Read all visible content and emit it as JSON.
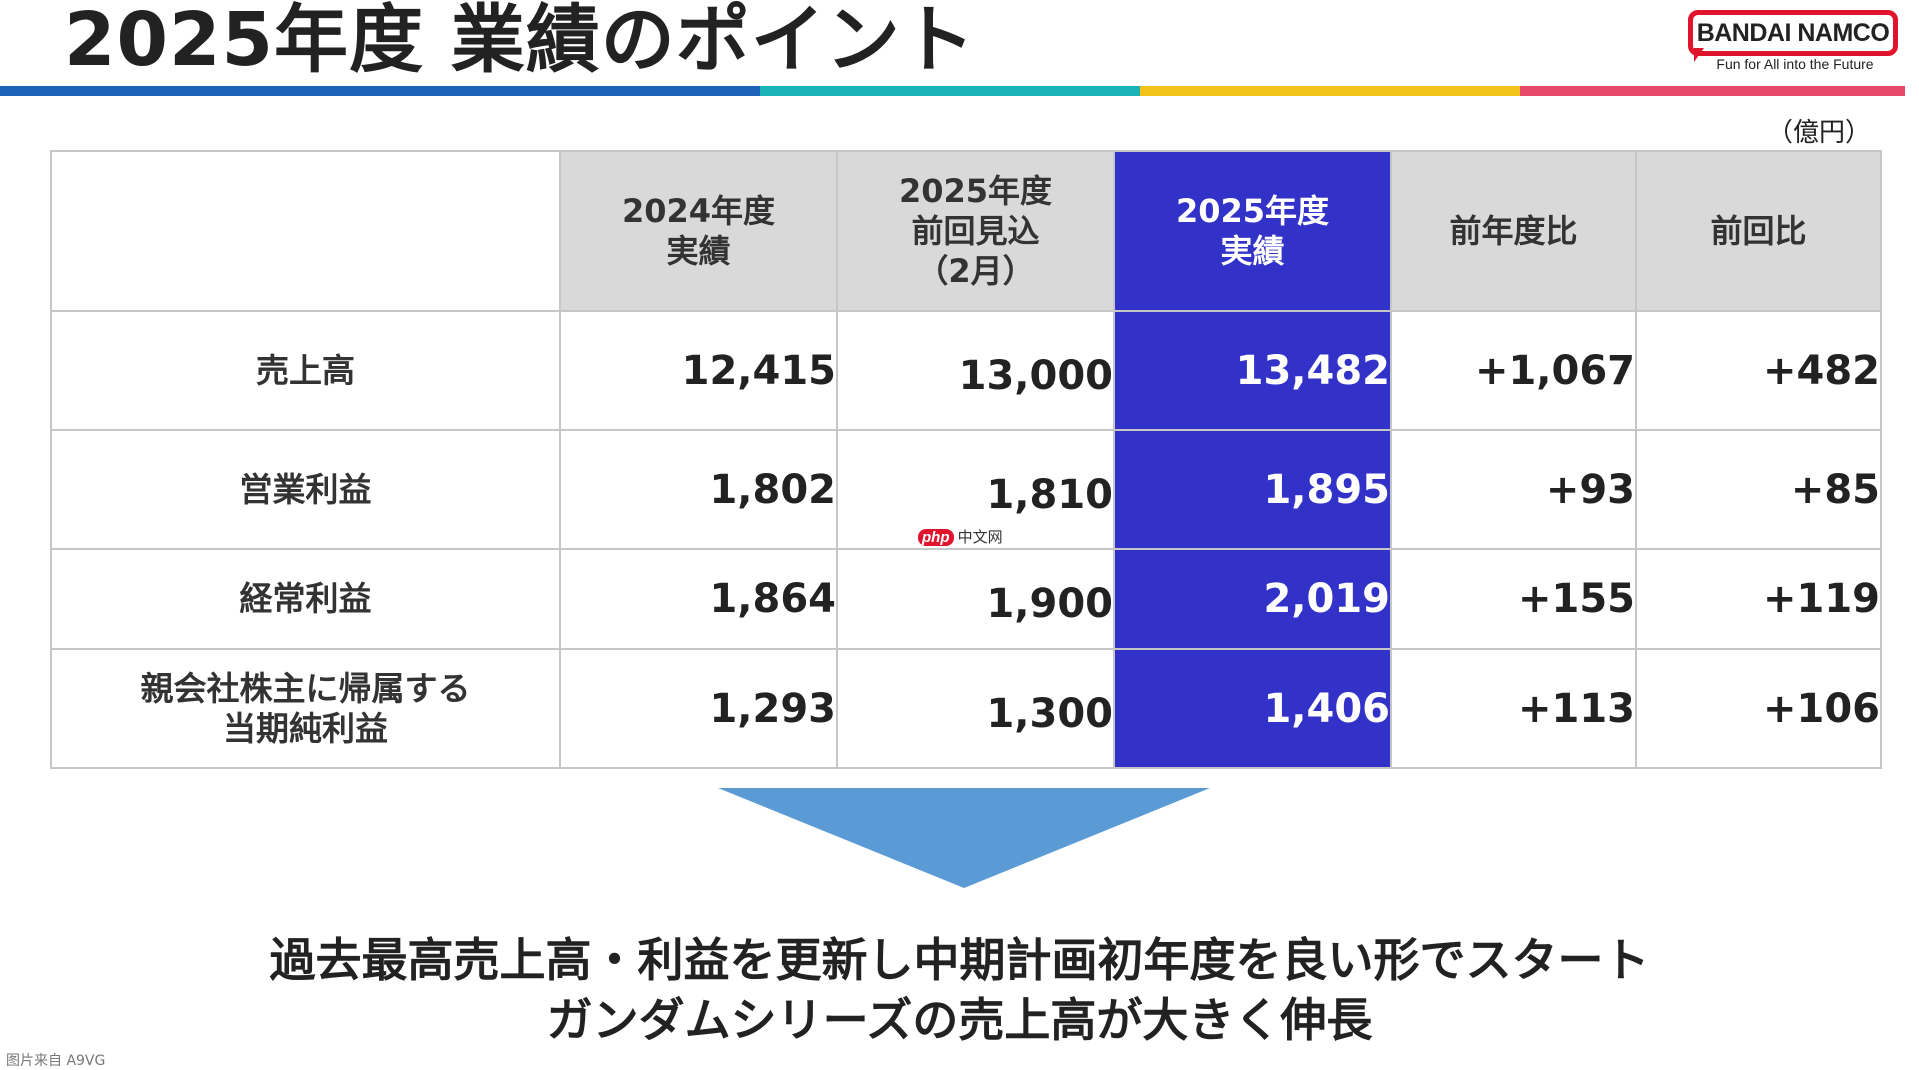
{
  "header": {
    "title": "2025年度 業績のポイント",
    "logo_text": "BANDAI NAMCO",
    "logo_tagline": "Fun for All into the Future",
    "stripe_colors": [
      "#1a63b8",
      "#19b3b8",
      "#f2c21a",
      "#e6486a"
    ]
  },
  "unit": "（億円）",
  "table": {
    "columns": [
      {
        "label": "",
        "highlight": false
      },
      {
        "label": "2024年度\n実績",
        "highlight": false
      },
      {
        "label": "2025年度\n前回見込\n（2月）",
        "highlight": false
      },
      {
        "label": "2025年度\n実績",
        "highlight": true
      },
      {
        "label": "前年度比",
        "highlight": false
      },
      {
        "label": "前回比",
        "highlight": false
      }
    ],
    "rows": [
      {
        "label": "売上高",
        "values": [
          "12,415",
          "13,000",
          "13,482",
          "+1,067",
          "+482"
        ]
      },
      {
        "label": "営業利益",
        "values": [
          "1,802",
          "1,810",
          "1,895",
          "+93",
          "+85"
        ]
      },
      {
        "label": "経常利益",
        "values": [
          "1,864",
          "1,900",
          "2,019",
          "+155",
          "+119"
        ]
      },
      {
        "label": "親会社株主に帰属する\n当期純利益",
        "values": [
          "1,293",
          "1,300",
          "1,406",
          "+113",
          "+106"
        ]
      }
    ]
  },
  "conclusion": {
    "line1": "過去最高売上高・利益を更新し中期計画初年度を良い形でスタート",
    "line2": "ガンダムシリーズの売上高が大きく伸長"
  },
  "watermark": {
    "badge": "php",
    "text": "中文网"
  },
  "source_note": "图片来自 A9VG",
  "colors": {
    "highlight": "#3232c8",
    "header_gray": "#d9d9d9",
    "arrow": "#5b9bd5",
    "logo_red": "#e0152d"
  }
}
